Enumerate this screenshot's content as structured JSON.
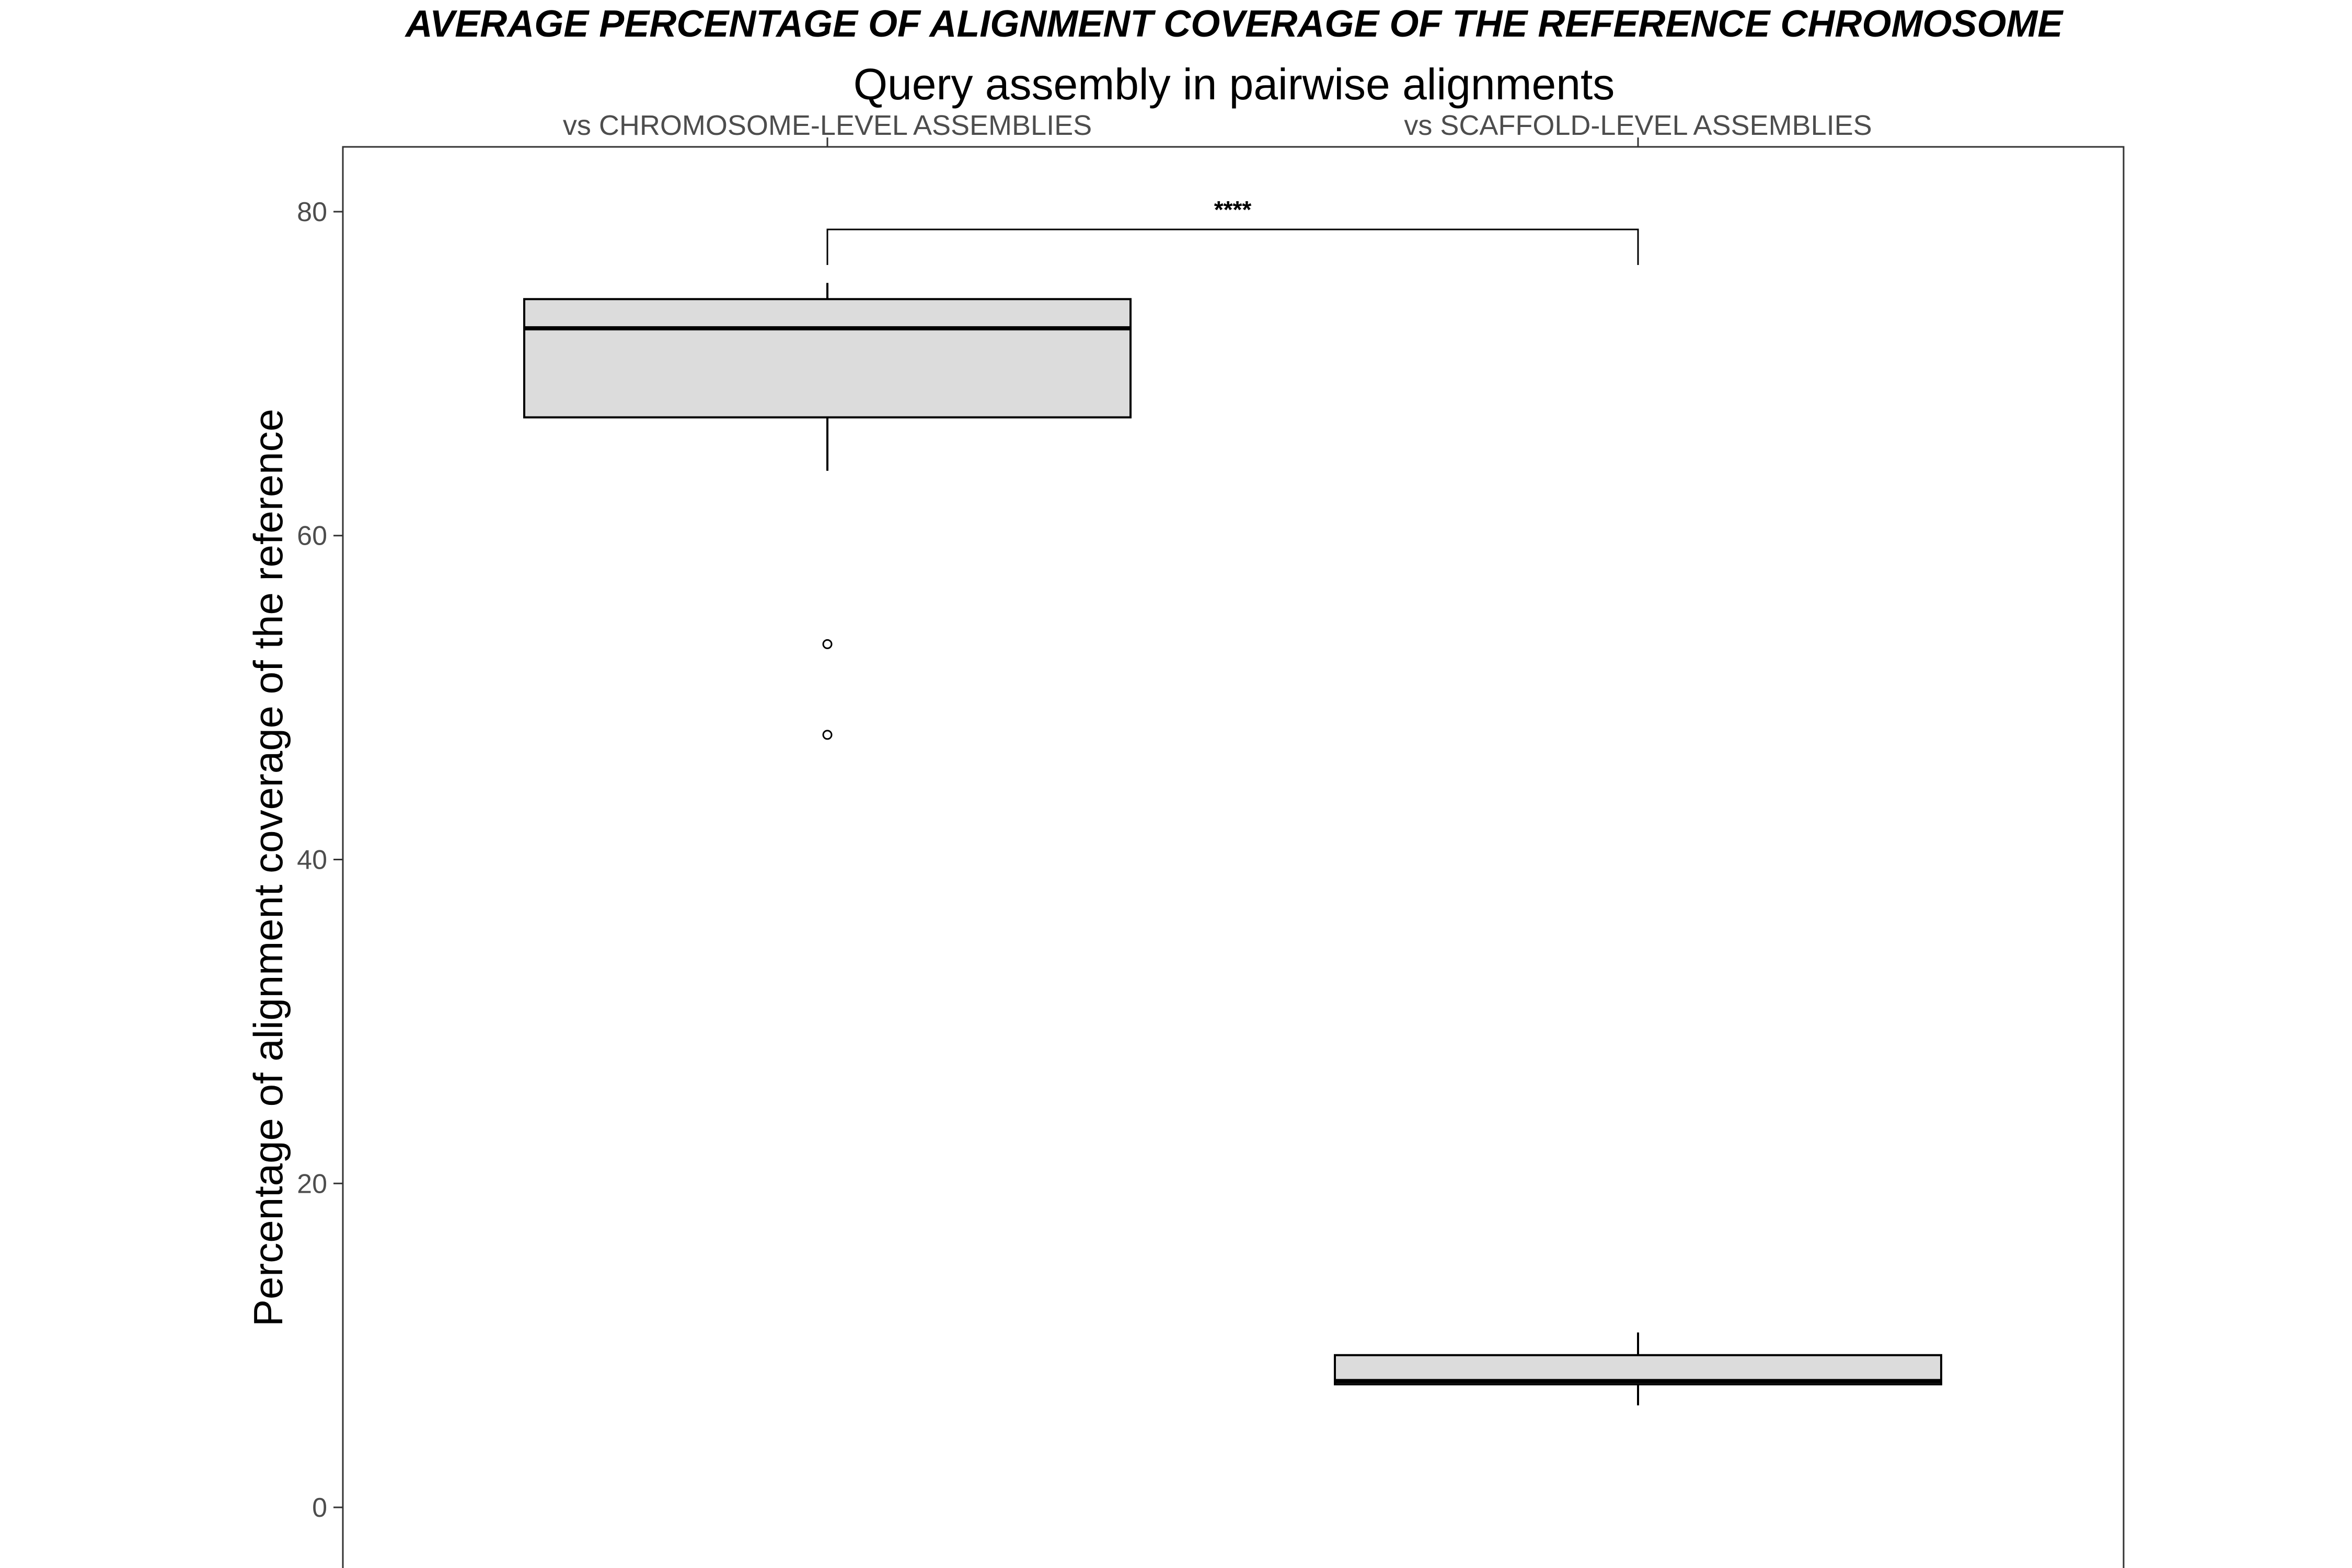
{
  "chart_data": {
    "type": "boxplot",
    "title": "AVERAGE PERCENTAGE OF ALIGNMENT COVERAGE OF THE REFERENCE CHROMOSOME",
    "subtitle": "Query assembly in pairwise alignments",
    "xlabel": "",
    "ylabel": "Percentage of alignment coverage of the reference",
    "ylim": [
      -4,
      84
    ],
    "yticks": [
      0,
      20,
      40,
      60,
      80
    ],
    "ytick_labels": [
      "0",
      "20",
      "40",
      "60",
      "80"
    ],
    "grid": false,
    "legend": "none",
    "box_fill": "#DCDCDC",
    "categories": [
      "vs CHROMOSOME-LEVEL ASSEMBLIES",
      "vs SCAFFOLD-LEVEL ASSEMBLIES"
    ],
    "boxes": [
      {
        "category": "vs CHROMOSOME-LEVEL ASSEMBLIES",
        "whisker_low": 64.0,
        "q1": 67.3,
        "median": 72.8,
        "q3": 74.6,
        "whisker_high": 75.6,
        "outliers": [
          53.3,
          47.7
        ]
      },
      {
        "category": "vs SCAFFOLD-LEVEL ASSEMBLIES",
        "whisker_low": 6.3,
        "q1": 7.6,
        "median": 7.8,
        "q3": 9.4,
        "whisker_high": 10.8,
        "outliers": []
      }
    ],
    "annotations": [
      {
        "text": "****",
        "between": [
          "vs CHROMOSOME-LEVEL ASSEMBLIES",
          "vs SCAFFOLD-LEVEL ASSEMBLIES"
        ],
        "y": 78.9
      }
    ]
  }
}
